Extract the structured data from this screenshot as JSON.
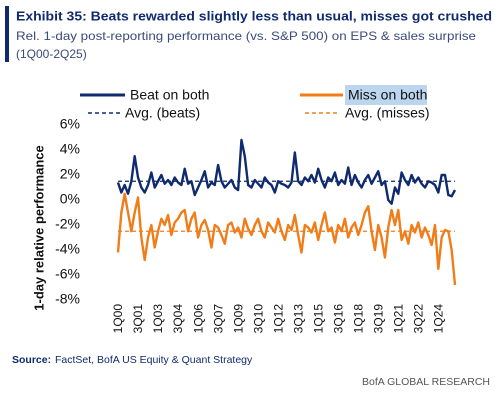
{
  "chart_data": {
    "type": "line",
    "title": "Exhibit 35: Beats rewarded slightly less than usual, misses got crushed",
    "subtitle_lines": [
      "Rel. 1-day post-reporting performance (vs. S&P 500) on EPS & sales surprise",
      "(1Q00-2Q25)"
    ],
    "y_label": "1-day relative performance",
    "source_label": "Source:",
    "source": "FactSet, BofA US Equity & Quant Strategy",
    "footer": "BofA GLOBAL RESEARCH",
    "ylim": [
      -8,
      6
    ],
    "yticks": [
      {
        "value": 6,
        "label": "6%"
      },
      {
        "value": 4,
        "label": "4%"
      },
      {
        "value": 2,
        "label": "2%"
      },
      {
        "value": 0,
        "label": "0%"
      },
      {
        "value": -2,
        "label": "-2%"
      },
      {
        "value": -4,
        "label": "-4%"
      },
      {
        "value": -6,
        "label": "-6%"
      },
      {
        "value": -8,
        "label": "-8%"
      }
    ],
    "grid": false,
    "categories": [
      "1Q00",
      null,
      null,
      null,
      null,
      null,
      "3Q01",
      null,
      null,
      null,
      null,
      null,
      "1Q03",
      null,
      null,
      null,
      null,
      null,
      "3Q04",
      null,
      null,
      null,
      null,
      null,
      "1Q06",
      null,
      null,
      null,
      null,
      null,
      "3Q07",
      null,
      null,
      null,
      null,
      null,
      "1Q09",
      null,
      null,
      null,
      null,
      null,
      "3Q10",
      null,
      null,
      null,
      null,
      null,
      "1Q12",
      null,
      null,
      null,
      null,
      null,
      "3Q13",
      null,
      null,
      null,
      null,
      null,
      "1Q15",
      null,
      null,
      null,
      null,
      null,
      "3Q16",
      null,
      null,
      null,
      null,
      null,
      "1Q18",
      null,
      null,
      null,
      null,
      null,
      "3Q19",
      null,
      null,
      null,
      null,
      null,
      "1Q21",
      null,
      null,
      null,
      null,
      null,
      "3Q22",
      null,
      null,
      null,
      null,
      null,
      "1Q24",
      null,
      null,
      null,
      null,
      null
    ],
    "series": [
      {
        "name": "Beat on both",
        "color": "#0f2a6e",
        "values": [
          1.4,
          0.6,
          1.2,
          0.5,
          1.5,
          3.5,
          1.8,
          1.0,
          0.6,
          1.2,
          2.2,
          1.0,
          1.5,
          2.0,
          1.3,
          1.6,
          1.2,
          1.8,
          1.4,
          1.2,
          2.5,
          1.3,
          1.5,
          0.4,
          1.0,
          1.6,
          2.3,
          1.0,
          1.4,
          1.2,
          2.8,
          1.5,
          1.0,
          1.3,
          1.6,
          1.0,
          0.8,
          4.8,
          3.5,
          1.2,
          1.0,
          1.6,
          1.3,
          1.0,
          1.8,
          1.4,
          1.2,
          0.6,
          1.5,
          1.3,
          1.2,
          1.0,
          1.4,
          3.8,
          1.5,
          1.2,
          1.8,
          1.5,
          2.0,
          1.4,
          2.5,
          1.6,
          1.0,
          1.8,
          1.5,
          2.2,
          1.2,
          1.6,
          1.3,
          2.6,
          1.2,
          2.0,
          1.4,
          1.0,
          1.6,
          2.0,
          1.3,
          1.8,
          2.3,
          1.2,
          1.5,
          0.0,
          -0.3,
          1.0,
          0.5,
          2.2,
          1.6,
          1.2,
          2.0,
          1.4,
          1.8,
          1.3,
          1.0,
          1.5,
          1.4,
          1.2,
          0.6,
          2.0,
          2.0,
          0.4,
          0.3,
          0.8
        ]
      },
      {
        "name": "Miss on both",
        "color": "#f07d1a",
        "values": [
          -4.2,
          -1.0,
          0.5,
          -1.0,
          -2.5,
          -1.0,
          0.2,
          -3.0,
          -4.8,
          -3.0,
          -2.0,
          -3.8,
          -2.5,
          -1.5,
          -2.0,
          -1.2,
          -2.8,
          -1.8,
          -1.5,
          -1.0,
          -0.8,
          -2.5,
          -1.5,
          -1.0,
          -3.0,
          -2.0,
          -1.6,
          -2.4,
          -3.8,
          -2.0,
          -2.2,
          -2.8,
          -3.5,
          -2.0,
          -1.8,
          -2.6,
          -2.2,
          -3.0,
          -1.5,
          -2.3,
          -2.8,
          -2.0,
          -1.5,
          -2.5,
          -3.0,
          -1.8,
          -2.2,
          -2.6,
          -1.5,
          -2.5,
          -3.2,
          -2.0,
          -2.4,
          -1.2,
          -2.8,
          -4.2,
          -2.0,
          -2.2,
          -2.6,
          -1.8,
          -3.2,
          -2.0,
          -1.0,
          -2.5,
          -2.2,
          -3.4,
          -2.0,
          -2.5,
          -1.5,
          -3.0,
          -2.2,
          -1.8,
          -2.8,
          -2.0,
          -1.0,
          -0.5,
          -2.5,
          -4.0,
          -2.0,
          -3.0,
          -4.6,
          -2.2,
          -0.8,
          -2.0,
          -0.8,
          -3.2,
          -2.5,
          -3.5,
          -2.0,
          -2.6,
          -1.8,
          -3.0,
          -2.2,
          -2.8,
          -3.6,
          -2.0,
          -5.5,
          -3.0,
          -2.4,
          -2.5,
          -4.0,
          -6.8
        ]
      }
    ],
    "reference_lines": [
      {
        "name": "Avg. (beats)",
        "color": "#0f2a6e",
        "value": 1.5
      },
      {
        "name": "Avg. (misses)",
        "color": "#f07d1a",
        "value": -2.5
      }
    ]
  }
}
